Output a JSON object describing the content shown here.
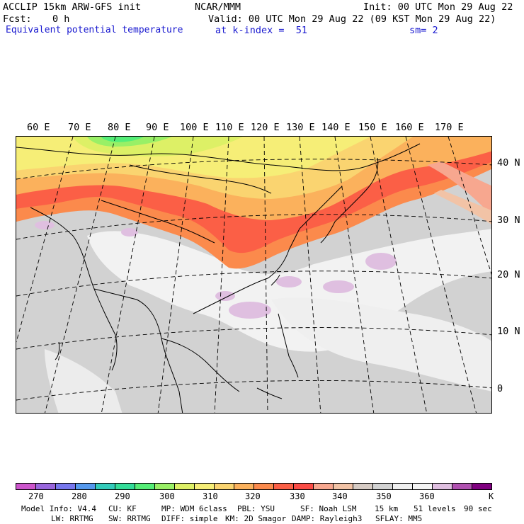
{
  "header": {
    "model": "ACCLIP 15km ARW-GFS init",
    "center": "NCAR/MMM",
    "init": "Init: 00 UTC Mon 29 Aug 22",
    "fcst_label": "Fcst:",
    "fcst_value": "0 h",
    "valid": "Valid: 00 UTC Mon 29 Aug 22 (09 KST Mon 29 Aug 22)",
    "field": "Equivalent potential temperature",
    "level": "at k-index =  51",
    "smoothing": "sm= 2"
  },
  "map": {
    "longitude_labels": [
      "60 E",
      "70 E",
      "80 E",
      "90 E",
      "100 E",
      "110 E",
      "120 E",
      "130 E",
      "140 E",
      "150 E",
      "160 E",
      "170 E"
    ],
    "latitude_labels": [
      "40 N",
      "30 N",
      "20 N",
      "10 N",
      "0"
    ]
  },
  "colorbar": {
    "colors": [
      "#cc55cc",
      "#9966dd",
      "#7777ee",
      "#5599ee",
      "#33ccbb",
      "#33dd99",
      "#55ee77",
      "#99f066",
      "#ddf066",
      "#f6ee77",
      "#fad470",
      "#fbb15c",
      "#fb8a4c",
      "#fb5f46",
      "#fb4c46",
      "#f7a78f",
      "#f2c3a6",
      "#d6cbc4",
      "#d2d2d2",
      "#efefef",
      "#f4f4f4",
      "#dfbfe0",
      "#b050b0",
      "#800080"
    ],
    "tick_labels": [
      "270",
      "280",
      "290",
      "300",
      "310",
      "320",
      "330",
      "340",
      "350",
      "360"
    ],
    "unit": "K"
  },
  "footer": {
    "line1": [
      "Model Info: V4.4",
      "CU: KF",
      "MP: WDM 6class",
      "PBL: YSU",
      "SF: Noah LSM",
      "15 km",
      "51 levels",
      "90 sec"
    ],
    "line2": [
      "LW: RRTMG",
      "SW: RRTMG",
      "DIFF: simple",
      "KM: 2D Smagor",
      "DAMP: Rayleigh3",
      "SFLAY: MM5"
    ]
  }
}
